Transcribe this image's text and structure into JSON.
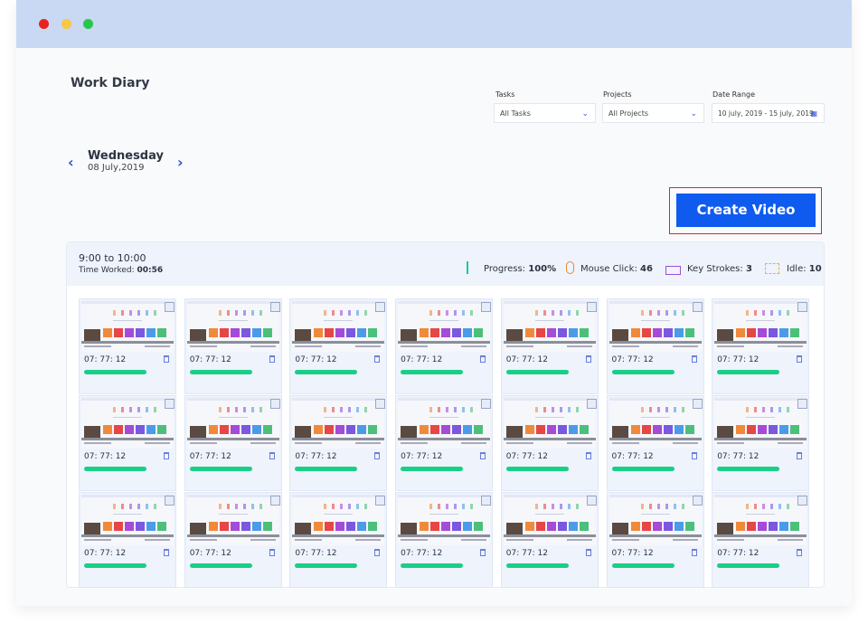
{
  "header": {
    "title": "Work Diary"
  },
  "filters": [
    {
      "label": "Tasks",
      "value": "All Tasks"
    },
    {
      "label": "Projects",
      "value": "All Projects"
    },
    {
      "label": "Date Range",
      "value": "10 july, 2019 - 15 july, 2019"
    }
  ],
  "date": {
    "day": "Wednesday",
    "date": "08 July,2019"
  },
  "create_button": "Create Video",
  "session": {
    "time_range": "9:00 to 10:00",
    "worked_label": "Time Worked:",
    "worked_value": "00:56",
    "stats": [
      {
        "label": "Progress:",
        "value": "100%"
      },
      {
        "label": "Mouse Click:",
        "value": "46"
      },
      {
        "label": "Key Strokes:",
        "value": "3"
      },
      {
        "label": "Idle:",
        "value": "10"
      }
    ]
  },
  "screenshots": [
    {
      "time": "07: 77: 12"
    },
    {
      "time": "07: 77: 12"
    },
    {
      "time": "07: 77: 12"
    },
    {
      "time": "07: 77: 12"
    },
    {
      "time": "07: 77: 12"
    },
    {
      "time": "07: 77: 12"
    },
    {
      "time": "07: 77: 12"
    },
    {
      "time": "07: 77: 12"
    },
    {
      "time": "07: 77: 12"
    },
    {
      "time": "07: 77: 12"
    },
    {
      "time": "07: 77: 12"
    },
    {
      "time": "07: 77: 12"
    },
    {
      "time": "07: 77: 12"
    },
    {
      "time": "07: 77: 12"
    },
    {
      "time": "07: 77: 12"
    },
    {
      "time": "07: 77: 12"
    },
    {
      "time": "07: 77: 12"
    },
    {
      "time": "07: 77: 12"
    },
    {
      "time": "07: 77: 12"
    },
    {
      "time": "07: 77: 12"
    },
    {
      "time": "07: 77: 12"
    }
  ]
}
